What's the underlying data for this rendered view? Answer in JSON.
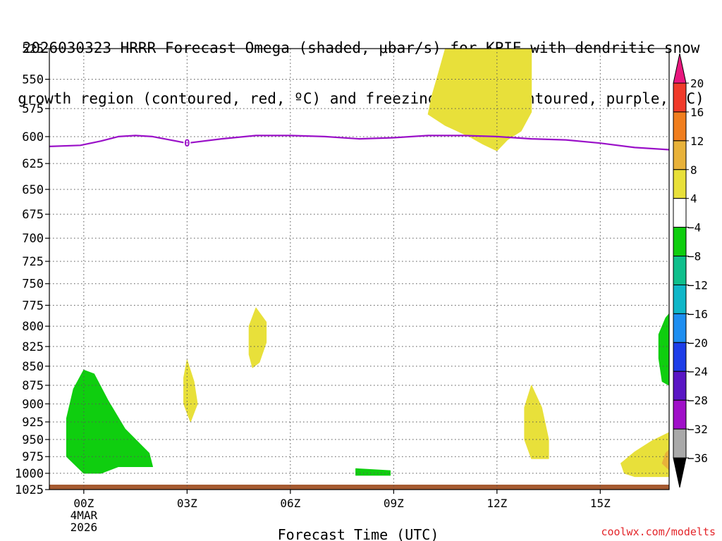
{
  "title": {
    "line1": "2026030323 HRRR Forecast Omega (shaded, μbar/s) for KPIE with dendritic snow",
    "line2": "growth region (contoured, red, ºC) and freezing level (contoured, purple, ºC)"
  },
  "credit": "coolwx.com/modelts",
  "chart_data": {
    "type": "heatmap",
    "title": "2026030323 HRRR Forecast Omega (shaded, μbar/s) for KPIE with dendritic snow growth region (contoured, red, ºC) and freezing level (contoured, purple, ºC)",
    "xlabel": "Forecast Time (UTC)",
    "ylabel": "",
    "x_ticks": [
      {
        "hour": 0,
        "label": "00Z",
        "sublabels": [
          "4MAR",
          "2026"
        ]
      },
      {
        "hour": 3,
        "label": "03Z",
        "sublabels": []
      },
      {
        "hour": 6,
        "label": "06Z",
        "sublabels": []
      },
      {
        "hour": 9,
        "label": "09Z",
        "sublabels": []
      },
      {
        "hour": 12,
        "label": "12Z",
        "sublabels": []
      },
      {
        "hour": 15,
        "label": "15Z",
        "sublabels": []
      }
    ],
    "xlim_hours": [
      -1,
      17
    ],
    "y_scale": "log",
    "ylim_hPa": [
      1025,
      525
    ],
    "y_ticks": [
      525,
      550,
      575,
      600,
      625,
      650,
      675,
      700,
      725,
      750,
      775,
      800,
      825,
      850,
      875,
      900,
      925,
      950,
      975,
      1000,
      1025
    ],
    "grid": true,
    "colorbar": {
      "labels": [
        20,
        16,
        12,
        8,
        4,
        -4,
        -8,
        -12,
        -16,
        -20,
        -24,
        -28,
        -32,
        -36
      ],
      "colors": [
        "#e8177e",
        "#f03a2a",
        "#f07e1e",
        "#e8b23a",
        "#e8e03a",
        "#ffffff",
        "#0fce0f",
        "#10bf8c",
        "#10b7c8",
        "#1e8ef0",
        "#1e3ee8",
        "#5a16c4",
        "#a010c8",
        "#a9a9a9",
        "#000000"
      ]
    },
    "freezing_level": {
      "color": "#9a10c8",
      "label": "0",
      "points": [
        [
          -1,
          609
        ],
        [
          -0.1,
          608
        ],
        [
          0.5,
          604
        ],
        [
          1,
          600
        ],
        [
          1.5,
          599
        ],
        [
          2,
          600
        ],
        [
          2.5,
          603
        ],
        [
          3,
          606
        ],
        [
          4,
          602
        ],
        [
          5,
          599
        ],
        [
          6,
          599
        ],
        [
          7,
          600
        ],
        [
          8,
          602
        ],
        [
          9,
          601
        ],
        [
          10,
          599
        ],
        [
          11,
          599
        ],
        [
          12,
          600
        ],
        [
          13,
          602
        ],
        [
          14,
          603
        ],
        [
          15,
          606
        ],
        [
          16,
          610
        ],
        [
          17,
          612
        ]
      ]
    },
    "omega_regions": [
      {
        "value_range": [
          4,
          8
        ],
        "color": "#e8e03a",
        "points": [
          [
            10.5,
            525
          ],
          [
            11.5,
            525
          ],
          [
            12.0,
            525
          ],
          [
            13.0,
            525
          ],
          [
            13.0,
            540
          ],
          [
            13.0,
            560
          ],
          [
            13.0,
            578
          ],
          [
            12.7,
            595
          ],
          [
            12.3,
            603
          ],
          [
            12.0,
            613
          ],
          [
            11.6,
            607
          ],
          [
            11.2,
            600
          ],
          [
            10.5,
            590
          ],
          [
            10.0,
            580
          ],
          [
            10.1,
            565
          ],
          [
            10.3,
            545
          ]
        ]
      },
      {
        "value_range": [
          4,
          8
        ],
        "color": "#e8e03a",
        "points": [
          [
            5.0,
            778
          ],
          [
            5.3,
            795
          ],
          [
            5.3,
            820
          ],
          [
            5.1,
            845
          ],
          [
            4.9,
            852
          ],
          [
            4.8,
            835
          ],
          [
            4.8,
            800
          ]
        ]
      },
      {
        "value_range": [
          4,
          8
        ],
        "color": "#e8e03a",
        "points": [
          [
            3.0,
            842
          ],
          [
            3.2,
            870
          ],
          [
            3.3,
            900
          ],
          [
            3.1,
            925
          ],
          [
            2.9,
            900
          ],
          [
            2.9,
            865
          ]
        ]
      },
      {
        "value_range": [
          4,
          8
        ],
        "color": "#e8e03a",
        "points": [
          [
            13.0,
            875
          ],
          [
            13.3,
            905
          ],
          [
            13.5,
            950
          ],
          [
            13.5,
            978
          ],
          [
            13.0,
            978
          ],
          [
            12.8,
            950
          ],
          [
            12.8,
            905
          ]
        ]
      },
      {
        "value_range": [
          4,
          8
        ],
        "color": "#e8e03a",
        "points": [
          [
            17.0,
            940
          ],
          [
            17.0,
            1005
          ],
          [
            16.0,
            1005
          ],
          [
            15.7,
            1000
          ],
          [
            15.6,
            985
          ],
          [
            16.0,
            968
          ],
          [
            16.5,
            952
          ]
        ]
      },
      {
        "value_range": [
          8,
          12
        ],
        "color": "#e8b23a",
        "points": [
          [
            17.0,
            965
          ],
          [
            17.0,
            995
          ],
          [
            16.8,
            985
          ],
          [
            16.9,
            970
          ]
        ]
      },
      {
        "value_range": [
          -8,
          -4
        ],
        "color": "#0fce0f",
        "points": [
          [
            0.0,
            855
          ],
          [
            0.3,
            860
          ],
          [
            0.7,
            895
          ],
          [
            1.2,
            935
          ],
          [
            1.9,
            970
          ],
          [
            2.0,
            990
          ],
          [
            1.0,
            990
          ],
          [
            0.5,
            1000
          ],
          [
            0.0,
            1000
          ],
          [
            -0.5,
            975
          ],
          [
            -0.5,
            920
          ],
          [
            -0.3,
            880
          ]
        ]
      },
      {
        "value_range": [
          -8,
          -4
        ],
        "color": "#0fce0f",
        "points": [
          [
            7.9,
            993
          ],
          [
            8.9,
            996
          ],
          [
            8.9,
            1003
          ],
          [
            7.9,
            1003
          ]
        ]
      },
      {
        "value_range": [
          -8,
          -4
        ],
        "color": "#0fce0f",
        "points": [
          [
            17.0,
            785
          ],
          [
            17.0,
            875
          ],
          [
            16.8,
            870
          ],
          [
            16.7,
            840
          ],
          [
            16.7,
            810
          ],
          [
            16.9,
            790
          ]
        ]
      }
    ],
    "surface_strip": {
      "color": "#a55a30",
      "pressure_hPa": 1025
    }
  }
}
